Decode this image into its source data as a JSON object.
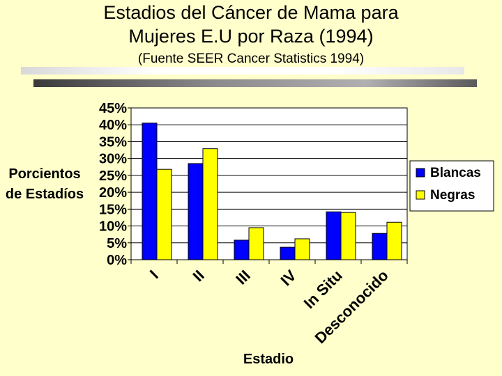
{
  "header": {
    "title_line1": "Estadios del Cáncer de Mama para",
    "title_line2": "Mujeres E.U por Raza (1994)",
    "subtitle": "(Fuente SEER Cancer Statistics 1994)"
  },
  "chart_data": {
    "type": "bar",
    "categories": [
      "I",
      "II",
      "III",
      "IV",
      "In Situ",
      "Desconocido"
    ],
    "series": [
      {
        "name": "Blancas",
        "color": "#0000ff",
        "values": [
          40.5,
          28.5,
          5.8,
          3.7,
          14.2,
          7.8
        ]
      },
      {
        "name": "Negras",
        "color": "#ffff00",
        "values": [
          26.8,
          32.9,
          9.5,
          6.2,
          14.0,
          11.1
        ]
      }
    ],
    "yticks": [
      "0%",
      "5%",
      "10%",
      "15%",
      "20%",
      "25%",
      "30%",
      "35%",
      "40%",
      "45%"
    ],
    "ylabel_line1": "Porcientos",
    "ylabel_line2": "de Estadíos",
    "xlabel": "Estadio",
    "ylim": [
      0,
      45
    ],
    "grid": true,
    "legend_position": "right"
  }
}
